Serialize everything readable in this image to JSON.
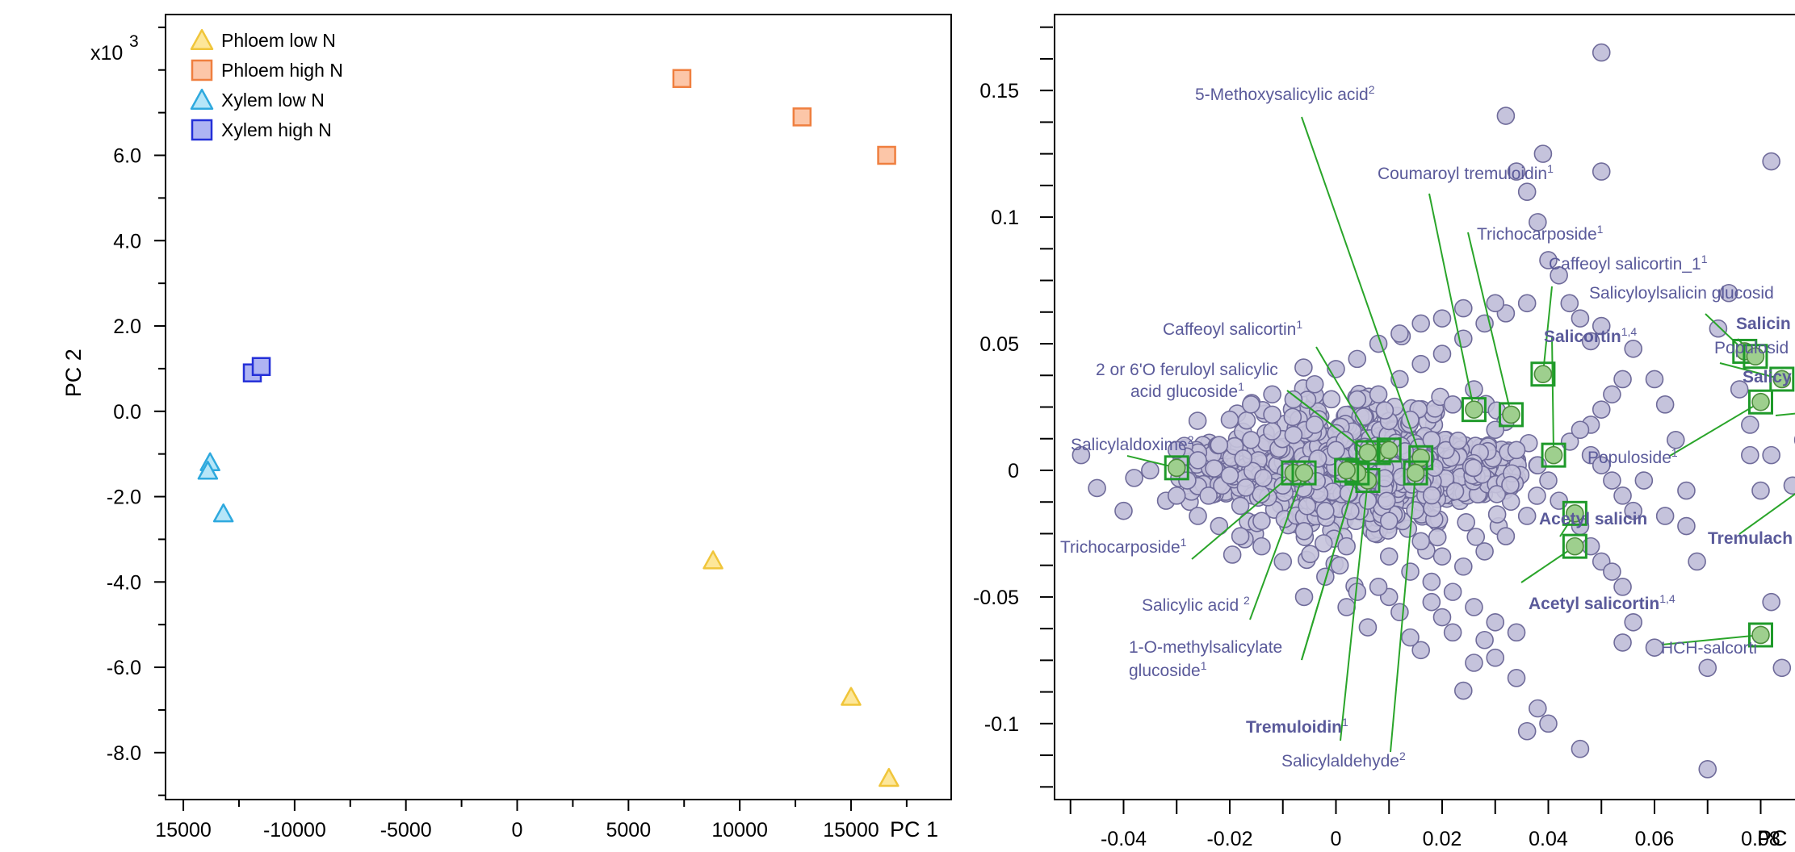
{
  "chart_data": [
    {
      "type": "scatter",
      "title": "",
      "xlabel": "PC 1",
      "ylabel": "PC 2",
      "y_multiplier_label": "x10",
      "y_multiplier_exp": "3",
      "x_ticks": [
        "15000",
        "-10000",
        "-5000",
        "0",
        "5000",
        "10000",
        "15000"
      ],
      "y_ticks": [
        "6.0",
        "4.0",
        "2.0",
        "0.0",
        "-2.0",
        "-4.0",
        "-6.0",
        "-8.0"
      ],
      "xlim": [
        -15800,
        19500
      ],
      "ylim": [
        -9.1,
        9.3
      ],
      "legend_position": "top-left",
      "series": [
        {
          "name": "Phloem low N",
          "marker": "triangle",
          "fill": "#fde79a",
          "stroke": "#f0c53a",
          "points": [
            [
              8800,
              -3.5
            ],
            [
              15000,
              -6.7
            ],
            [
              16700,
              -8.6
            ]
          ]
        },
        {
          "name": "Phloem high N",
          "marker": "square",
          "fill": "#fcc6a8",
          "stroke": "#ef7f3f",
          "points": [
            [
              7400,
              7.8
            ],
            [
              12800,
              6.9
            ],
            [
              16600,
              6.0
            ]
          ]
        },
        {
          "name": "Xylem  low N",
          "marker": "triangle",
          "fill": "#b6e6f8",
          "stroke": "#2ea9de",
          "points": [
            [
              -13800,
              -1.2
            ],
            [
              -13900,
              -1.4
            ],
            [
              -13200,
              -2.4
            ]
          ]
        },
        {
          "name": "Xylem high N",
          "marker": "square",
          "fill": "#aeb4f3",
          "stroke": "#2430d8",
          "points": [
            [
              -11900,
              0.9
            ],
            [
              -11500,
              1.05
            ]
          ]
        }
      ]
    },
    {
      "type": "scatter",
      "title": "",
      "xlabel": "PC",
      "ylabel": "",
      "x_ticks": [
        "-0.04",
        "-0.02",
        "0",
        "0.02",
        "0.04",
        "0.06",
        "0.08"
      ],
      "y_ticks": [
        "0.15",
        "0.1",
        "0.05",
        "0",
        "-0.05",
        "-0.1"
      ],
      "xlim": [
        -0.053,
        0.1
      ],
      "ylim": [
        -0.13,
        0.18
      ],
      "background_points": {
        "fill": "#c5c3dc",
        "stroke": "#6f6b9a",
        "points": [
          [
            -0.048,
            0.006
          ],
          [
            -0.045,
            -0.007
          ],
          [
            -0.04,
            -0.016
          ],
          [
            -0.038,
            -0.003
          ],
          [
            -0.035,
            0.0
          ],
          [
            -0.032,
            -0.012
          ],
          [
            -0.03,
            0.008
          ],
          [
            -0.028,
            -0.004
          ],
          [
            -0.026,
            0.004
          ],
          [
            -0.024,
            -0.01
          ],
          [
            -0.022,
            0.01
          ],
          [
            -0.02,
            -0.002
          ],
          [
            -0.018,
            -0.014
          ],
          [
            -0.016,
            0.012
          ],
          [
            -0.014,
            -0.02
          ],
          [
            -0.012,
            0.022
          ],
          [
            -0.01,
            -0.006
          ],
          [
            -0.008,
            0.014
          ],
          [
            -0.006,
            -0.024
          ],
          [
            -0.004,
            0.018
          ],
          [
            -0.002,
            -0.016
          ],
          [
            0.0,
            0.008
          ],
          [
            0.002,
            -0.03
          ],
          [
            0.004,
            0.028
          ],
          [
            0.006,
            -0.012
          ],
          [
            0.008,
            0.03
          ],
          [
            0.01,
            -0.034
          ],
          [
            0.012,
            0.036
          ],
          [
            0.014,
            -0.04
          ],
          [
            0.016,
            0.042
          ],
          [
            0.018,
            -0.044
          ],
          [
            0.02,
            0.046
          ],
          [
            0.022,
            -0.048
          ],
          [
            0.024,
            0.052
          ],
          [
            0.026,
            -0.054
          ],
          [
            0.028,
            0.058
          ],
          [
            0.03,
            -0.06
          ],
          [
            0.032,
            0.062
          ],
          [
            0.034,
            -0.064
          ],
          [
            0.036,
            0.066
          ],
          [
            0.024,
            0.064
          ],
          [
            0.03,
            0.066
          ],
          [
            0.032,
            0.14
          ],
          [
            0.034,
            0.118
          ],
          [
            0.036,
            0.11
          ],
          [
            0.038,
            0.098
          ],
          [
            0.039,
            0.125
          ],
          [
            0.04,
            0.083
          ],
          [
            0.042,
            0.077
          ],
          [
            0.044,
            0.066
          ],
          [
            0.046,
            0.06
          ],
          [
            0.048,
            0.051
          ],
          [
            0.05,
            0.057
          ],
          [
            0.05,
            0.118
          ],
          [
            0.05,
            0.165
          ],
          [
            0.048,
            0.018
          ],
          [
            0.05,
            0.024
          ],
          [
            0.052,
            0.03
          ],
          [
            0.054,
            0.036
          ],
          [
            0.056,
            0.048
          ],
          [
            0.046,
            0.016
          ],
          [
            0.048,
            0.006
          ],
          [
            0.05,
            0.002
          ],
          [
            0.052,
            -0.004
          ],
          [
            0.054,
            -0.01
          ],
          [
            0.056,
            -0.016
          ],
          [
            0.046,
            -0.022
          ],
          [
            0.048,
            -0.03
          ],
          [
            0.05,
            -0.036
          ],
          [
            0.052,
            -0.04
          ],
          [
            0.054,
            -0.046
          ],
          [
            0.056,
            -0.06
          ],
          [
            0.054,
            -0.068
          ],
          [
            0.058,
            -0.004
          ],
          [
            0.06,
            0.036
          ],
          [
            0.062,
            0.026
          ],
          [
            0.064,
            0.012
          ],
          [
            0.066,
            -0.008
          ],
          [
            0.066,
            -0.022
          ],
          [
            0.068,
            -0.036
          ],
          [
            0.07,
            -0.118
          ],
          [
            0.072,
            0.056
          ],
          [
            0.074,
            0.07
          ],
          [
            0.076,
            0.032
          ],
          [
            0.078,
            0.018
          ],
          [
            0.078,
            0.006
          ],
          [
            0.08,
            -0.008
          ],
          [
            0.082,
            0.122
          ],
          [
            0.082,
            0.006
          ],
          [
            0.082,
            -0.052
          ],
          [
            0.084,
            -0.078
          ],
          [
            0.086,
            -0.006
          ],
          [
            0.088,
            0.012
          ],
          [
            0.09,
            0.022
          ],
          [
            0.092,
            0.032
          ],
          [
            0.094,
            0.018
          ],
          [
            0.09,
            -0.031
          ],
          [
            0.07,
            -0.078
          ],
          [
            0.06,
            -0.07
          ],
          [
            0.062,
            -0.018
          ],
          [
            0.046,
            -0.11
          ],
          [
            0.04,
            -0.1
          ],
          [
            0.038,
            -0.094
          ],
          [
            0.036,
            -0.103
          ],
          [
            0.034,
            -0.082
          ],
          [
            0.03,
            -0.074
          ],
          [
            0.028,
            -0.067
          ],
          [
            0.026,
            -0.076
          ],
          [
            0.024,
            -0.087
          ],
          [
            0.022,
            -0.064
          ],
          [
            0.02,
            -0.058
          ],
          [
            0.018,
            -0.052
          ],
          [
            0.016,
            -0.071
          ],
          [
            0.014,
            -0.066
          ],
          [
            0.012,
            -0.056
          ],
          [
            0.01,
            -0.05
          ],
          [
            0.008,
            -0.046
          ],
          [
            0.006,
            -0.062
          ],
          [
            0.004,
            -0.048
          ],
          [
            0.002,
            -0.054
          ],
          [
            -0.002,
            -0.042
          ],
          [
            -0.006,
            -0.05
          ],
          [
            -0.01,
            -0.036
          ],
          [
            -0.014,
            -0.03
          ],
          [
            -0.018,
            -0.026
          ],
          [
            -0.022,
            -0.022
          ],
          [
            -0.026,
            -0.018
          ],
          [
            -0.03,
            -0.01
          ],
          [
            -0.02,
            0.02
          ],
          [
            -0.016,
            0.026
          ],
          [
            -0.012,
            0.03
          ],
          [
            -0.008,
            0.028
          ],
          [
            -0.004,
            0.034
          ],
          [
            0.0,
            0.04
          ],
          [
            0.004,
            0.044
          ],
          [
            0.008,
            0.05
          ],
          [
            0.012,
            0.054
          ],
          [
            0.016,
            0.058
          ],
          [
            0.02,
            0.06
          ],
          [
            0.022,
            0.026
          ],
          [
            0.018,
            0.012
          ],
          [
            0.014,
            0.02
          ],
          [
            0.01,
            -0.02
          ],
          [
            0.006,
            0.004
          ],
          [
            0.026,
            0.032
          ],
          [
            0.03,
            0.016
          ],
          [
            0.034,
            0.008
          ],
          [
            0.038,
            0.002
          ],
          [
            0.04,
            -0.004
          ],
          [
            0.042,
            -0.012
          ],
          [
            0.036,
            -0.018
          ],
          [
            0.032,
            -0.026
          ],
          [
            0.028,
            -0.032
          ],
          [
            0.024,
            -0.038
          ],
          [
            0.02,
            -0.034
          ],
          [
            0.016,
            -0.028
          ]
        ]
      },
      "highlighted": [
        {
          "label": "5-Methoxysalicylic acid",
          "sup": "2",
          "bold": false,
          "x": 0.016,
          "y": 0.005
        },
        {
          "label": "Coumaroyl tremuloidin",
          "sup": "1",
          "bold": false,
          "x": 0.026,
          "y": 0.024
        },
        {
          "label": "Trichocarposide",
          "sup": "1",
          "bold": false,
          "x": 0.033,
          "y": 0.022
        },
        {
          "label": "Caffeoyl salicortin_1",
          "sup": "1",
          "bold": false,
          "x": 0.039,
          "y": 0.038
        },
        {
          "label": "Salicyloylsalicin glucosid",
          "sup": "",
          "bold": false,
          "x": 0.077,
          "y": 0.047
        },
        {
          "label": "Salicin",
          "sup": "",
          "bold": true,
          "x": 0.079,
          "y": 0.045
        },
        {
          "label": "Populosid",
          "sup": "",
          "bold": false,
          "x": 0.084,
          "y": 0.036
        },
        {
          "label": "Salicy",
          "sup": "",
          "bold": true,
          "x": 0.094,
          "y": 0.024
        },
        {
          "label": "Salicortin",
          "sup": "1,4",
          "bold": true,
          "x": 0.041,
          "y": 0.006
        },
        {
          "label": "Caffeoyl salicortin",
          "sup": "1",
          "bold": false,
          "x": 0.008,
          "y": 0.007
        },
        {
          "label": "2 or 6'O feruloyl salicylic",
          "sup": "",
          "bold": false,
          "x": 0.006,
          "y": 0.007
        },
        {
          "label": "acid glucoside",
          "sup": "1",
          "bold": false,
          "x": 0.006,
          "y": 0.007
        },
        {
          "label": "Salicylaldoxime",
          "sup": "2",
          "bold": false,
          "x": -0.03,
          "y": 0.001
        },
        {
          "label": "Populoside",
          "sup": "1",
          "bold": false,
          "x": 0.08,
          "y": 0.027
        },
        {
          "label": "Acetyl salicin",
          "sup": "",
          "bold": true,
          "x": 0.045,
          "y": -0.017
        },
        {
          "label": "Tremulach",
          "sup": "",
          "bold": true,
          "x": 0.098,
          "y": 0.008
        },
        {
          "label": "Trichocarposide",
          "sup": "1",
          "bold": false,
          "x": -0.008,
          "y": -0.001
        },
        {
          "label": "Acetyl salicortin",
          "sup": "1,4",
          "bold": true,
          "x": 0.045,
          "y": -0.03
        },
        {
          "label": "Salicylic acid ",
          "sup": "2",
          "bold": false,
          "x": -0.006,
          "y": -0.001
        },
        {
          "label": "1-O-methylsalicylate",
          "sup": "",
          "bold": false,
          "x": 0.004,
          "y": -0.001
        },
        {
          "label": "glucoside",
          "sup": "1",
          "bold": false,
          "x": 0.004,
          "y": -0.001
        },
        {
          "label": "HCH-salcorti",
          "sup": "",
          "bold": false,
          "x": 0.08,
          "y": -0.065
        },
        {
          "label": "Tremuloidin",
          "sup": "1",
          "bold": true,
          "x": 0.006,
          "y": -0.004
        },
        {
          "label": "Salicylaldehyde",
          "sup": "2",
          "bold": false,
          "x": 0.015,
          "y": -0.001
        }
      ],
      "extra_highlighted": [
        [
          0.094,
          0.024
        ],
        [
          0.098,
          0.008
        ],
        [
          0.01,
          0.008
        ],
        [
          0.004,
          -0.001
        ],
        [
          0.002,
          0.0
        ]
      ],
      "asterisk": {
        "x": 0.1015,
        "y": -0.006,
        "color": "#7cc84a"
      }
    }
  ]
}
